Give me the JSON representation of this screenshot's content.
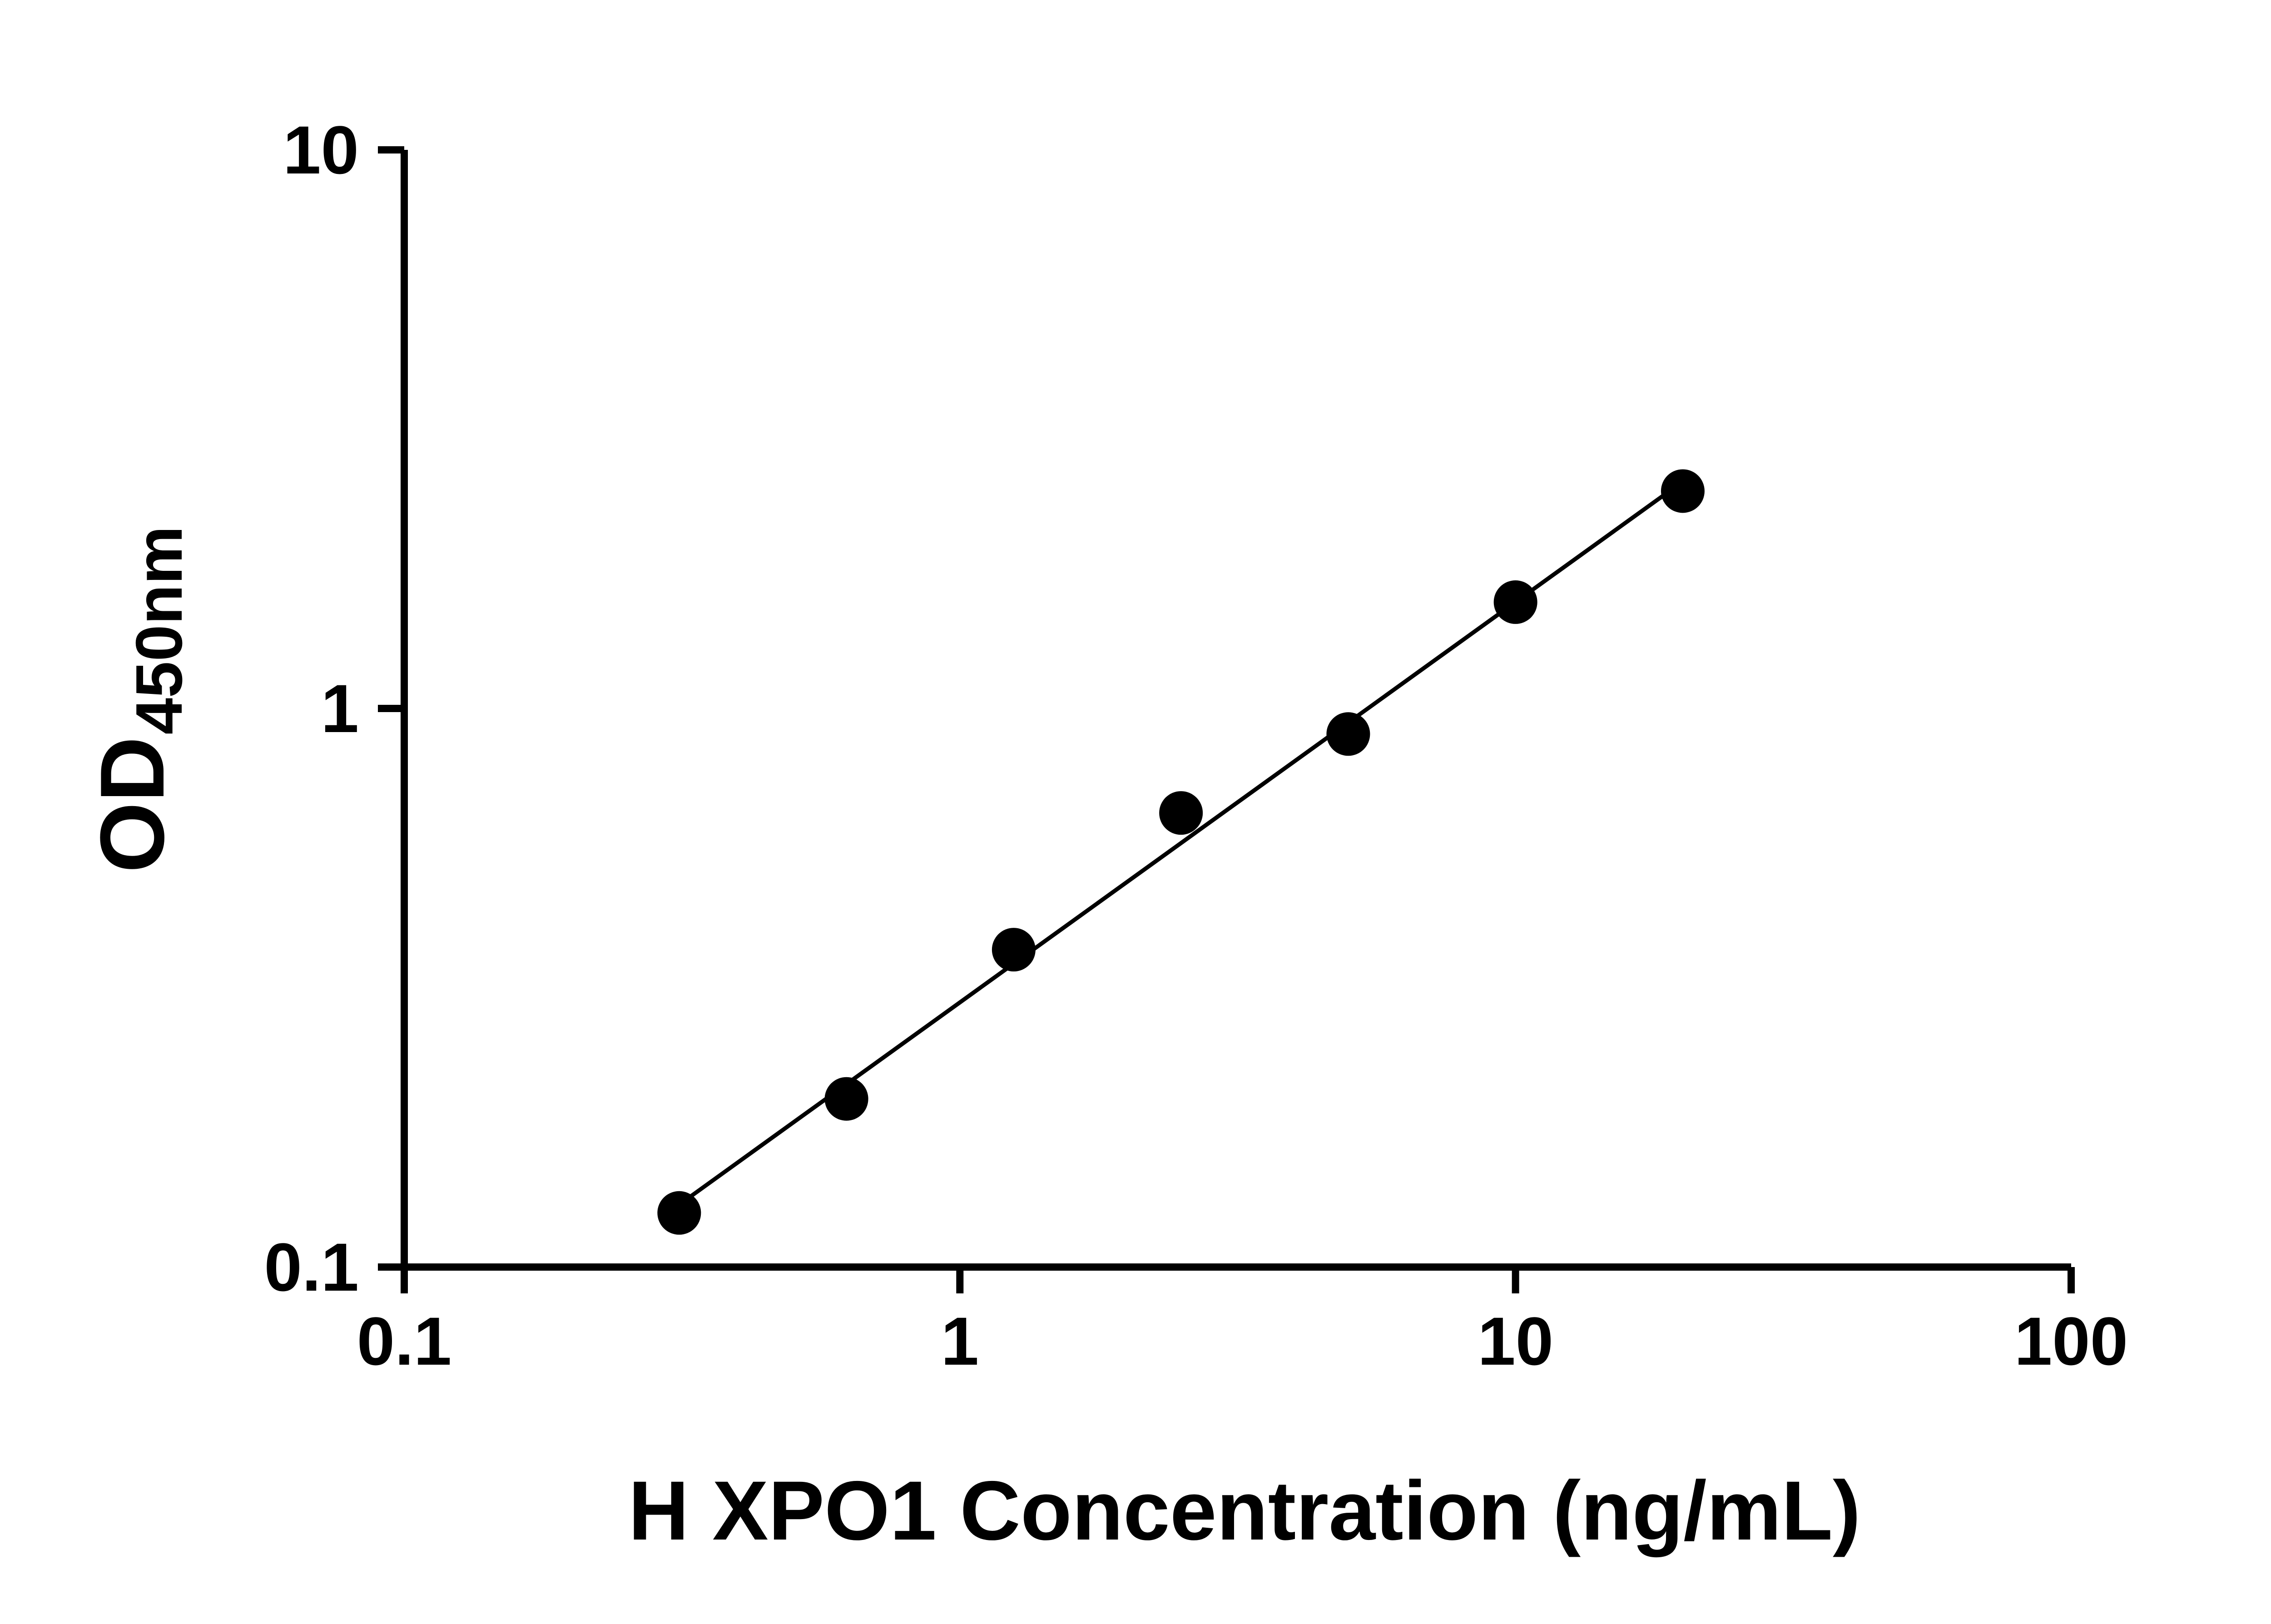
{
  "chart_data": {
    "type": "scatter",
    "title": "",
    "xlabel": "H XPO1 Concentration (ng/mL)",
    "ylabel_main": "OD",
    "ylabel_sub": "450nm",
    "x_scale": "log10",
    "y_scale": "log10",
    "xlim": [
      0.1,
      100
    ],
    "ylim": [
      0.1,
      10
    ],
    "x_ticks": [
      0.1,
      1,
      10,
      100
    ],
    "x_tick_labels": [
      "0.1",
      "1",
      "10",
      "100"
    ],
    "y_ticks": [
      0.1,
      1,
      10
    ],
    "y_tick_labels": [
      "0.1",
      "1",
      "10"
    ],
    "grid": false,
    "legend": "none",
    "series": [
      {
        "name": "standard-curve",
        "marker": "filled-circle",
        "marker_color": "#000000",
        "line_color": "#000000",
        "fit": "linear-loglog",
        "points": [
          {
            "x": 0.3125,
            "y": 0.125
          },
          {
            "x": 0.625,
            "y": 0.2
          },
          {
            "x": 1.25,
            "y": 0.37
          },
          {
            "x": 2.5,
            "y": 0.65
          },
          {
            "x": 5,
            "y": 0.9
          },
          {
            "x": 10,
            "y": 1.55
          },
          {
            "x": 20,
            "y": 2.45
          }
        ]
      }
    ],
    "colors": {
      "axis": "#000000",
      "marker": "#000000",
      "line": "#000000",
      "background": "#ffffff"
    }
  }
}
